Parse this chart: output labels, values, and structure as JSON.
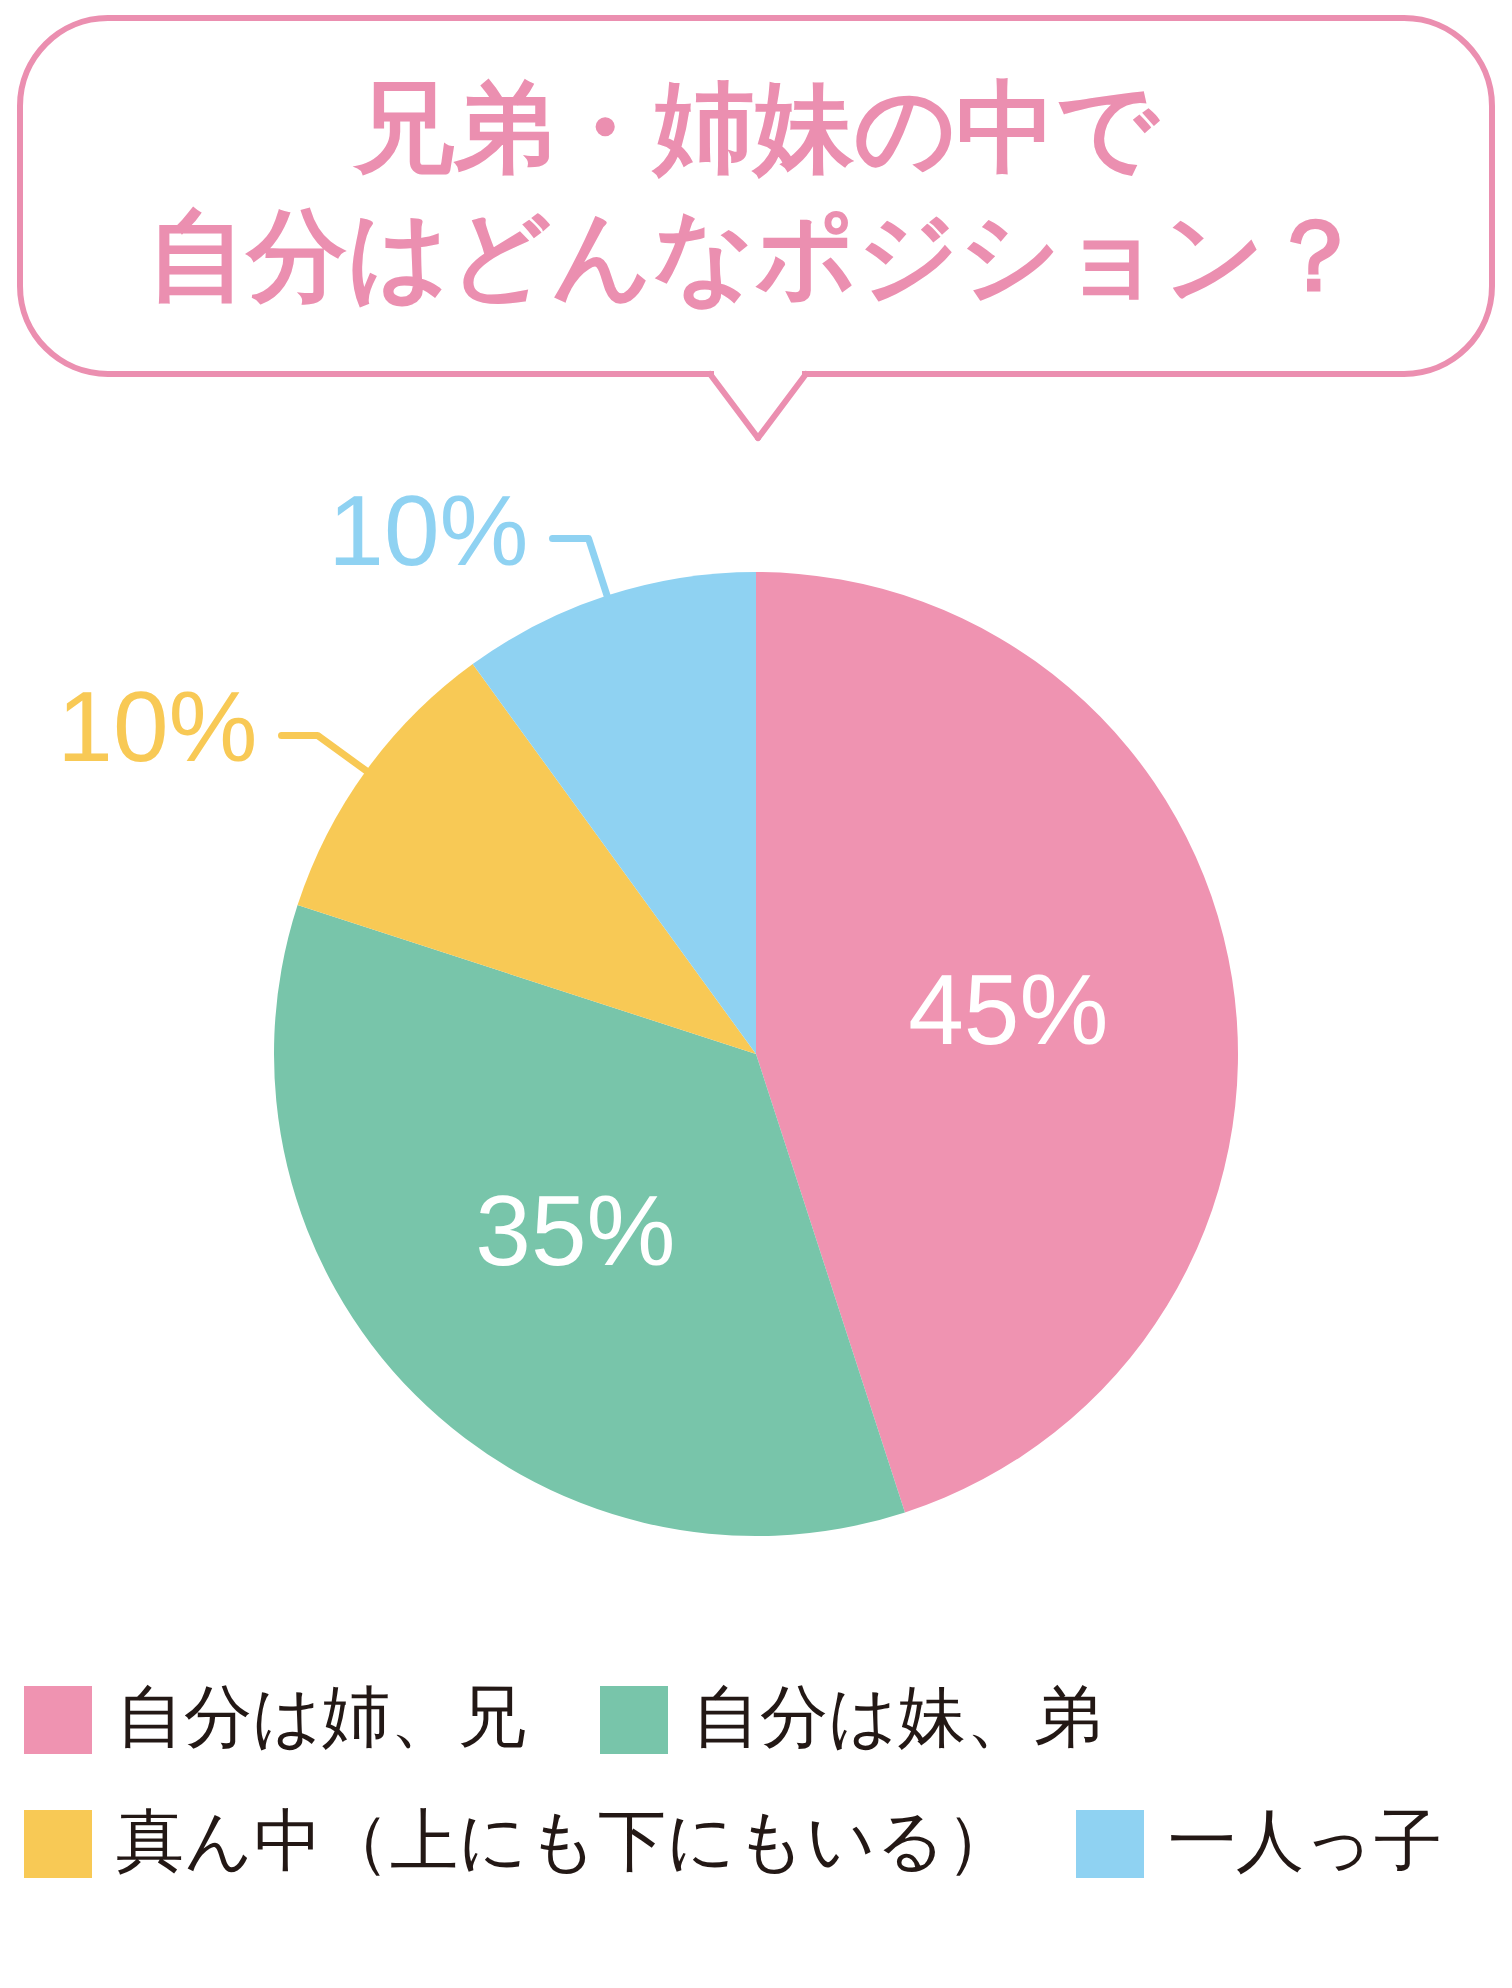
{
  "chart_data": {
    "type": "pie",
    "title": "兄弟・姉妹の中で自分はどんなポジション？",
    "categories": [
      "自分は姉、兄",
      "自分は妹、弟",
      "真ん中（上にも下にもいる）",
      "一人っ子"
    ],
    "values": [
      45,
      35,
      10,
      10
    ],
    "colors": [
      "#ef93b1",
      "#78c5aa",
      "#f8c955",
      "#8fd2f2"
    ],
    "value_labels": [
      "45%",
      "35%",
      "10%",
      "10%"
    ],
    "legend": "bottom"
  }
}
